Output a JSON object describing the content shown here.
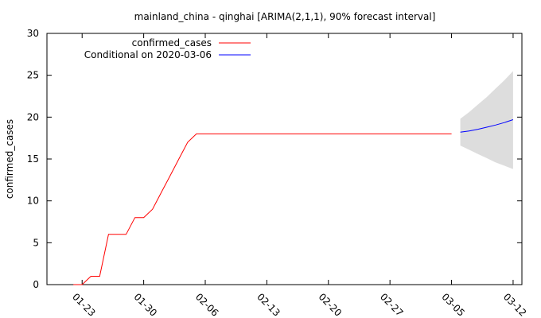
{
  "chart_data": {
    "type": "line",
    "title": "mainland_china - qinghai [ARIMA(2,1,1), 90% forecast interval]",
    "xlabel": "",
    "ylabel": "confirmed_cases",
    "ylim": [
      0,
      30
    ],
    "xlim": [
      "2020-01-19",
      "2020-03-13"
    ],
    "grid": false,
    "legend_position": "top-left",
    "y_ticks": [
      "0",
      "5",
      "10",
      "15",
      "20",
      "25",
      "30"
    ],
    "x_ticks": [
      {
        "date": "2020-01-23",
        "label": "01-23"
      },
      {
        "date": "2020-01-30",
        "label": "01-30"
      },
      {
        "date": "2020-02-06",
        "label": "02-06"
      },
      {
        "date": "2020-02-13",
        "label": "02-13"
      },
      {
        "date": "2020-02-20",
        "label": "02-20"
      },
      {
        "date": "2020-02-27",
        "label": "02-27"
      },
      {
        "date": "2020-03-05",
        "label": "03-05"
      },
      {
        "date": "2020-03-12",
        "label": "03-12"
      }
    ],
    "series": [
      {
        "name": "confirmed_cases",
        "color": "#ff0000",
        "points": [
          [
            "2020-01-22",
            0
          ],
          [
            "2020-01-23",
            0
          ],
          [
            "2020-01-24",
            1
          ],
          [
            "2020-01-25",
            1
          ],
          [
            "2020-01-26",
            6
          ],
          [
            "2020-01-27",
            6
          ],
          [
            "2020-01-28",
            6
          ],
          [
            "2020-01-29",
            8
          ],
          [
            "2020-01-30",
            8
          ],
          [
            "2020-01-31",
            9
          ],
          [
            "2020-02-01",
            11
          ],
          [
            "2020-02-02",
            13
          ],
          [
            "2020-02-03",
            15
          ],
          [
            "2020-02-04",
            17
          ],
          [
            "2020-02-05",
            18
          ],
          [
            "2020-02-06",
            18
          ],
          [
            "2020-02-10",
            18
          ],
          [
            "2020-02-15",
            18
          ],
          [
            "2020-02-20",
            18
          ],
          [
            "2020-02-25",
            18
          ],
          [
            "2020-03-01",
            18
          ],
          [
            "2020-03-05",
            18
          ]
        ]
      },
      {
        "name": "Conditional on 2020-03-06",
        "color": "#0000ff",
        "points": [
          [
            "2020-03-06",
            18.2
          ],
          [
            "2020-03-07",
            18.35
          ],
          [
            "2020-03-08",
            18.55
          ],
          [
            "2020-03-09",
            18.8
          ],
          [
            "2020-03-10",
            19.05
          ],
          [
            "2020-03-11",
            19.35
          ],
          [
            "2020-03-12",
            19.7
          ]
        ]
      }
    ],
    "forecast_interval": {
      "fill": "#dddddd",
      "points": [
        [
          "2020-03-06",
          16.6,
          19.8
        ],
        [
          "2020-03-07",
          16.1,
          20.6
        ],
        [
          "2020-03-08",
          15.6,
          21.5
        ],
        [
          "2020-03-09",
          15.1,
          22.4
        ],
        [
          "2020-03-10",
          14.6,
          23.4
        ],
        [
          "2020-03-11",
          14.2,
          24.4
        ],
        [
          "2020-03-12",
          13.8,
          25.5
        ]
      ]
    }
  }
}
